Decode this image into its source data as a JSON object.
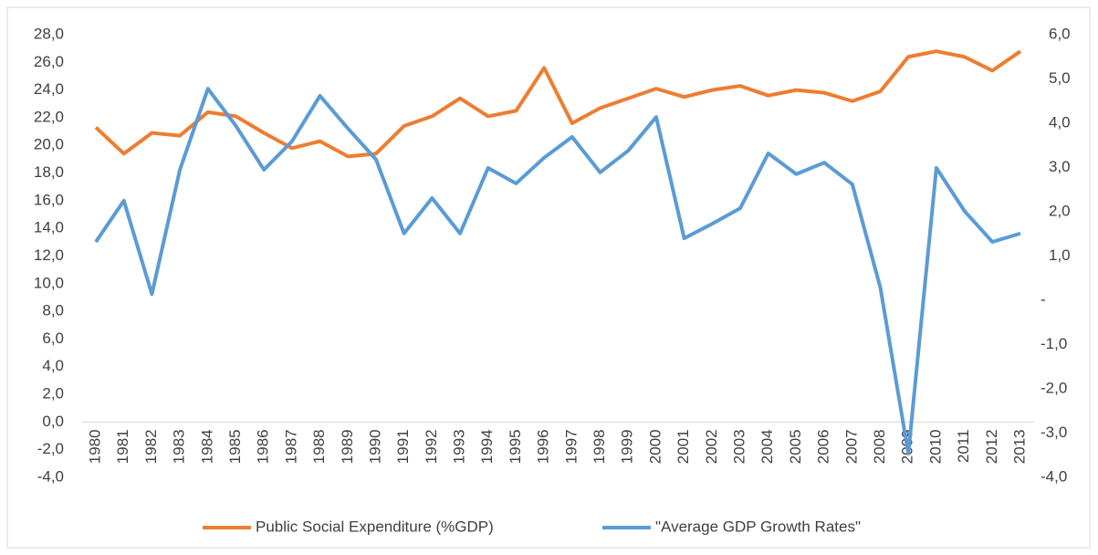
{
  "chart_data": {
    "type": "line",
    "categories": [
      "1980",
      "1981",
      "1982",
      "1983",
      "1984",
      "1985",
      "1986",
      "1987",
      "1988",
      "1989",
      "1990",
      "1991",
      "1992",
      "1993",
      "1994",
      "1995",
      "1996",
      "1997",
      "1998",
      "1999",
      "2000",
      "2001",
      "2002",
      "2003",
      "2004",
      "2005",
      "2006",
      "2007",
      "2008",
      "2009",
      "2010",
      "2011",
      "2012",
      "2013"
    ],
    "series": [
      {
        "name": "Public Social Expenditure (%GDP)",
        "color": "#ed7d31",
        "values": [
          21.3,
          19.4,
          20.9,
          20.7,
          22.4,
          22.1,
          20.9,
          19.8,
          20.3,
          19.2,
          19.4,
          21.4,
          22.1,
          23.4,
          22.1,
          22.5,
          25.6,
          21.6,
          22.7,
          23.4,
          24.1,
          23.5,
          24.0,
          24.3,
          23.6,
          24.0,
          23.8,
          23.2,
          23.9,
          26.4,
          26.8,
          26.4,
          25.4,
          26.8
        ]
      },
      {
        "name": "\"Average GDP Growth Rates\"",
        "color": "#5b9bd5",
        "axis": "y2",
        "values": [
          1.32,
          2.25,
          0.14,
          2.95,
          4.78,
          3.94,
          2.95,
          3.59,
          4.62,
          3.88,
          3.18,
          1.51,
          2.31,
          1.51,
          2.99,
          2.64,
          3.22,
          3.69,
          2.89,
          3.38,
          4.14,
          1.4,
          1.73,
          2.08,
          3.32,
          2.85,
          3.11,
          2.62,
          0.29,
          -3.46,
          2.99,
          2.02,
          1.32,
          1.51
        ]
      }
    ],
    "ylim": [
      -4,
      28
    ],
    "yticks": [
      {
        "value": -4,
        "label": "-4,0"
      },
      {
        "value": -2,
        "label": "-2,0"
      },
      {
        "value": 0,
        "label": "0,0"
      },
      {
        "value": 2,
        "label": "2,0"
      },
      {
        "value": 4,
        "label": "4,0"
      },
      {
        "value": 6,
        "label": "6,0"
      },
      {
        "value": 8,
        "label": "8,0"
      },
      {
        "value": 10,
        "label": "10,0"
      },
      {
        "value": 12,
        "label": "12,0"
      },
      {
        "value": 14,
        "label": "14,0"
      },
      {
        "value": 16,
        "label": "16,0"
      },
      {
        "value": 18,
        "label": "18,0"
      },
      {
        "value": 20,
        "label": "20,0"
      },
      {
        "value": 22,
        "label": "22,0"
      },
      {
        "value": 24,
        "label": "24,0"
      },
      {
        "value": 26,
        "label": "26,0"
      },
      {
        "value": 28,
        "label": "28,0"
      }
    ],
    "y2lim": [
      -4,
      6
    ],
    "y2ticks": [
      {
        "value": -4,
        "label": "-4,0"
      },
      {
        "value": -3,
        "label": "-3,0"
      },
      {
        "value": -2,
        "label": "-2,0"
      },
      {
        "value": -1,
        "label": "-1,0"
      },
      {
        "value": 0,
        "label": "-"
      },
      {
        "value": 1,
        "label": "1,0"
      },
      {
        "value": 2,
        "label": "2,0"
      },
      {
        "value": 3,
        "label": "3,0"
      },
      {
        "value": 4,
        "label": "4,0"
      },
      {
        "value": 5,
        "label": "5,0"
      },
      {
        "value": 6,
        "label": "6,0"
      }
    ],
    "legend": "bottom",
    "grid": false
  }
}
